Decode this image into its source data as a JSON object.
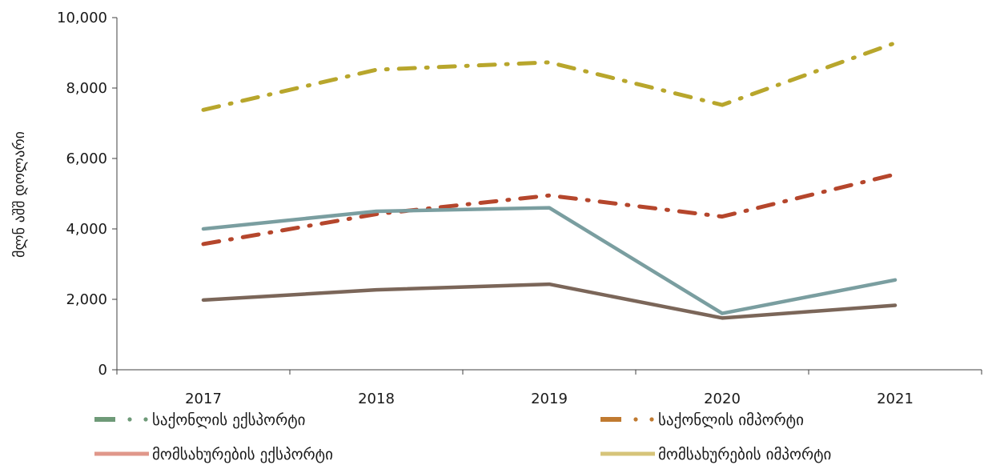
{
  "chart_data": {
    "type": "line",
    "title": "",
    "xlabel": "",
    "ylabel": "მლნ აშშ დოლარი",
    "categories": [
      "2017",
      "2018",
      "2019",
      "2020",
      "2021"
    ],
    "ylim": [
      0,
      10000
    ],
    "yticks": [
      0,
      2000,
      4000,
      6000,
      8000,
      10000
    ],
    "ytick_labels": [
      "0",
      "2,000",
      "4,000",
      "6,000",
      "8,000",
      "10,000"
    ],
    "grid": false,
    "legend_position": "bottom",
    "series": [
      {
        "name": "საქონლის ექსპორტი",
        "values": [
          4000,
          4500,
          4600,
          1600,
          2550
        ],
        "line_color": "#7a9ea0",
        "legend_color": "#6e9a78",
        "line_style": "solid",
        "legend_style": "dashdot"
      },
      {
        "name": "საქონლის იმპორტი",
        "values": [
          3570,
          4420,
          4950,
          4350,
          5550
        ],
        "line_color": "#b5462c",
        "legend_color": "#c07a30",
        "line_style": "dashdot",
        "legend_style": "dashdot"
      },
      {
        "name": "მომსახურების ექსპორტი",
        "values": [
          1980,
          2270,
          2430,
          1470,
          1830
        ],
        "line_color": "#7b6659",
        "legend_color": "#e0978a",
        "line_style": "solid",
        "legend_style": "solid"
      },
      {
        "name": "მომსახურების იმპორტი",
        "values": [
          7380,
          8520,
          8730,
          7520,
          9280
        ],
        "line_color": "#b8a62c",
        "legend_color": "#d6c47a",
        "line_style": "dashdot",
        "legend_style": "solid"
      }
    ]
  }
}
